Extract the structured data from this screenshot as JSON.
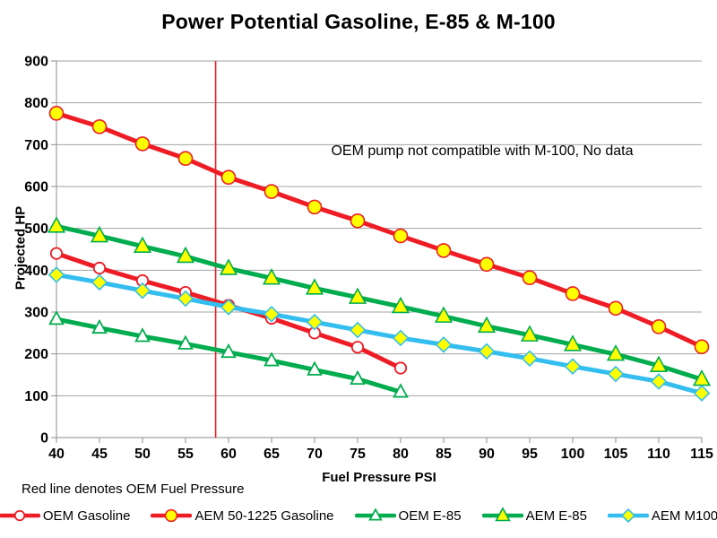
{
  "chart_data": {
    "type": "line",
    "title": "Power Potential Gasoline, E-85 & M-100",
    "xlabel": "Fuel Pressure PSI",
    "ylabel": "Projected HP",
    "annotation": "OEM pump not compatible with M-100, No data",
    "footer_note": "Red line denotes OEM Fuel Pressure",
    "xlim": [
      40,
      115
    ],
    "ylim": [
      0,
      900
    ],
    "x_ticks": [
      40,
      45,
      50,
      55,
      60,
      65,
      70,
      75,
      80,
      85,
      90,
      95,
      100,
      105,
      110,
      115
    ],
    "y_ticks": [
      0,
      100,
      200,
      300,
      400,
      500,
      600,
      700,
      800,
      900
    ],
    "grid": true,
    "legend_position": "bottom",
    "x": [
      40,
      45,
      50,
      55,
      60,
      65,
      70,
      75,
      80,
      85,
      90,
      95,
      100,
      105,
      110,
      115
    ],
    "series": [
      {
        "name": "OEM Gasoline",
        "color": "#EE1C25",
        "marker": "circle",
        "marker_fill": "#FFFFFF",
        "open": true,
        "values": [
          440,
          405,
          375,
          347,
          316,
          285,
          250,
          216,
          166
        ]
      },
      {
        "name": "AEM 50-1225 Gasoline",
        "color": "#EE1C25",
        "marker": "circle",
        "marker_fill": "#FFFF00",
        "open": false,
        "values": [
          775,
          743,
          702,
          667,
          622,
          588,
          551,
          518,
          482,
          447,
          414,
          382,
          344,
          309,
          265,
          217
        ]
      },
      {
        "name": "OEM E-85",
        "color": "#00AC4E",
        "marker": "triangle",
        "marker_fill": "#FFFFFF",
        "open": true,
        "values": [
          283,
          262,
          242,
          224,
          204,
          184,
          162,
          140,
          109
        ]
      },
      {
        "name": "AEM E-85",
        "color": "#00AC4E",
        "marker": "triangle",
        "marker_fill": "#FFFF00",
        "open": false,
        "values": [
          505,
          482,
          457,
          433,
          404,
          381,
          357,
          335,
          313,
          290,
          266,
          245,
          222,
          199,
          172,
          139
        ]
      },
      {
        "name": "AEM M100",
        "color": "#33BEEF",
        "marker": "diamond",
        "marker_fill": "#FFFF00",
        "open": false,
        "values": [
          389,
          371,
          351,
          332,
          312,
          295,
          276,
          257,
          238,
          222,
          206,
          189,
          170,
          152,
          134,
          106
        ]
      }
    ],
    "vline": {
      "x": 58.5,
      "color": "#EE1C25",
      "label": "OEM Fuel Pressure"
    },
    "colors": {
      "grid": "#A3A3A3",
      "axis": "#8C8C8C",
      "text": "#000000",
      "background": "#FFFFFF"
    }
  }
}
